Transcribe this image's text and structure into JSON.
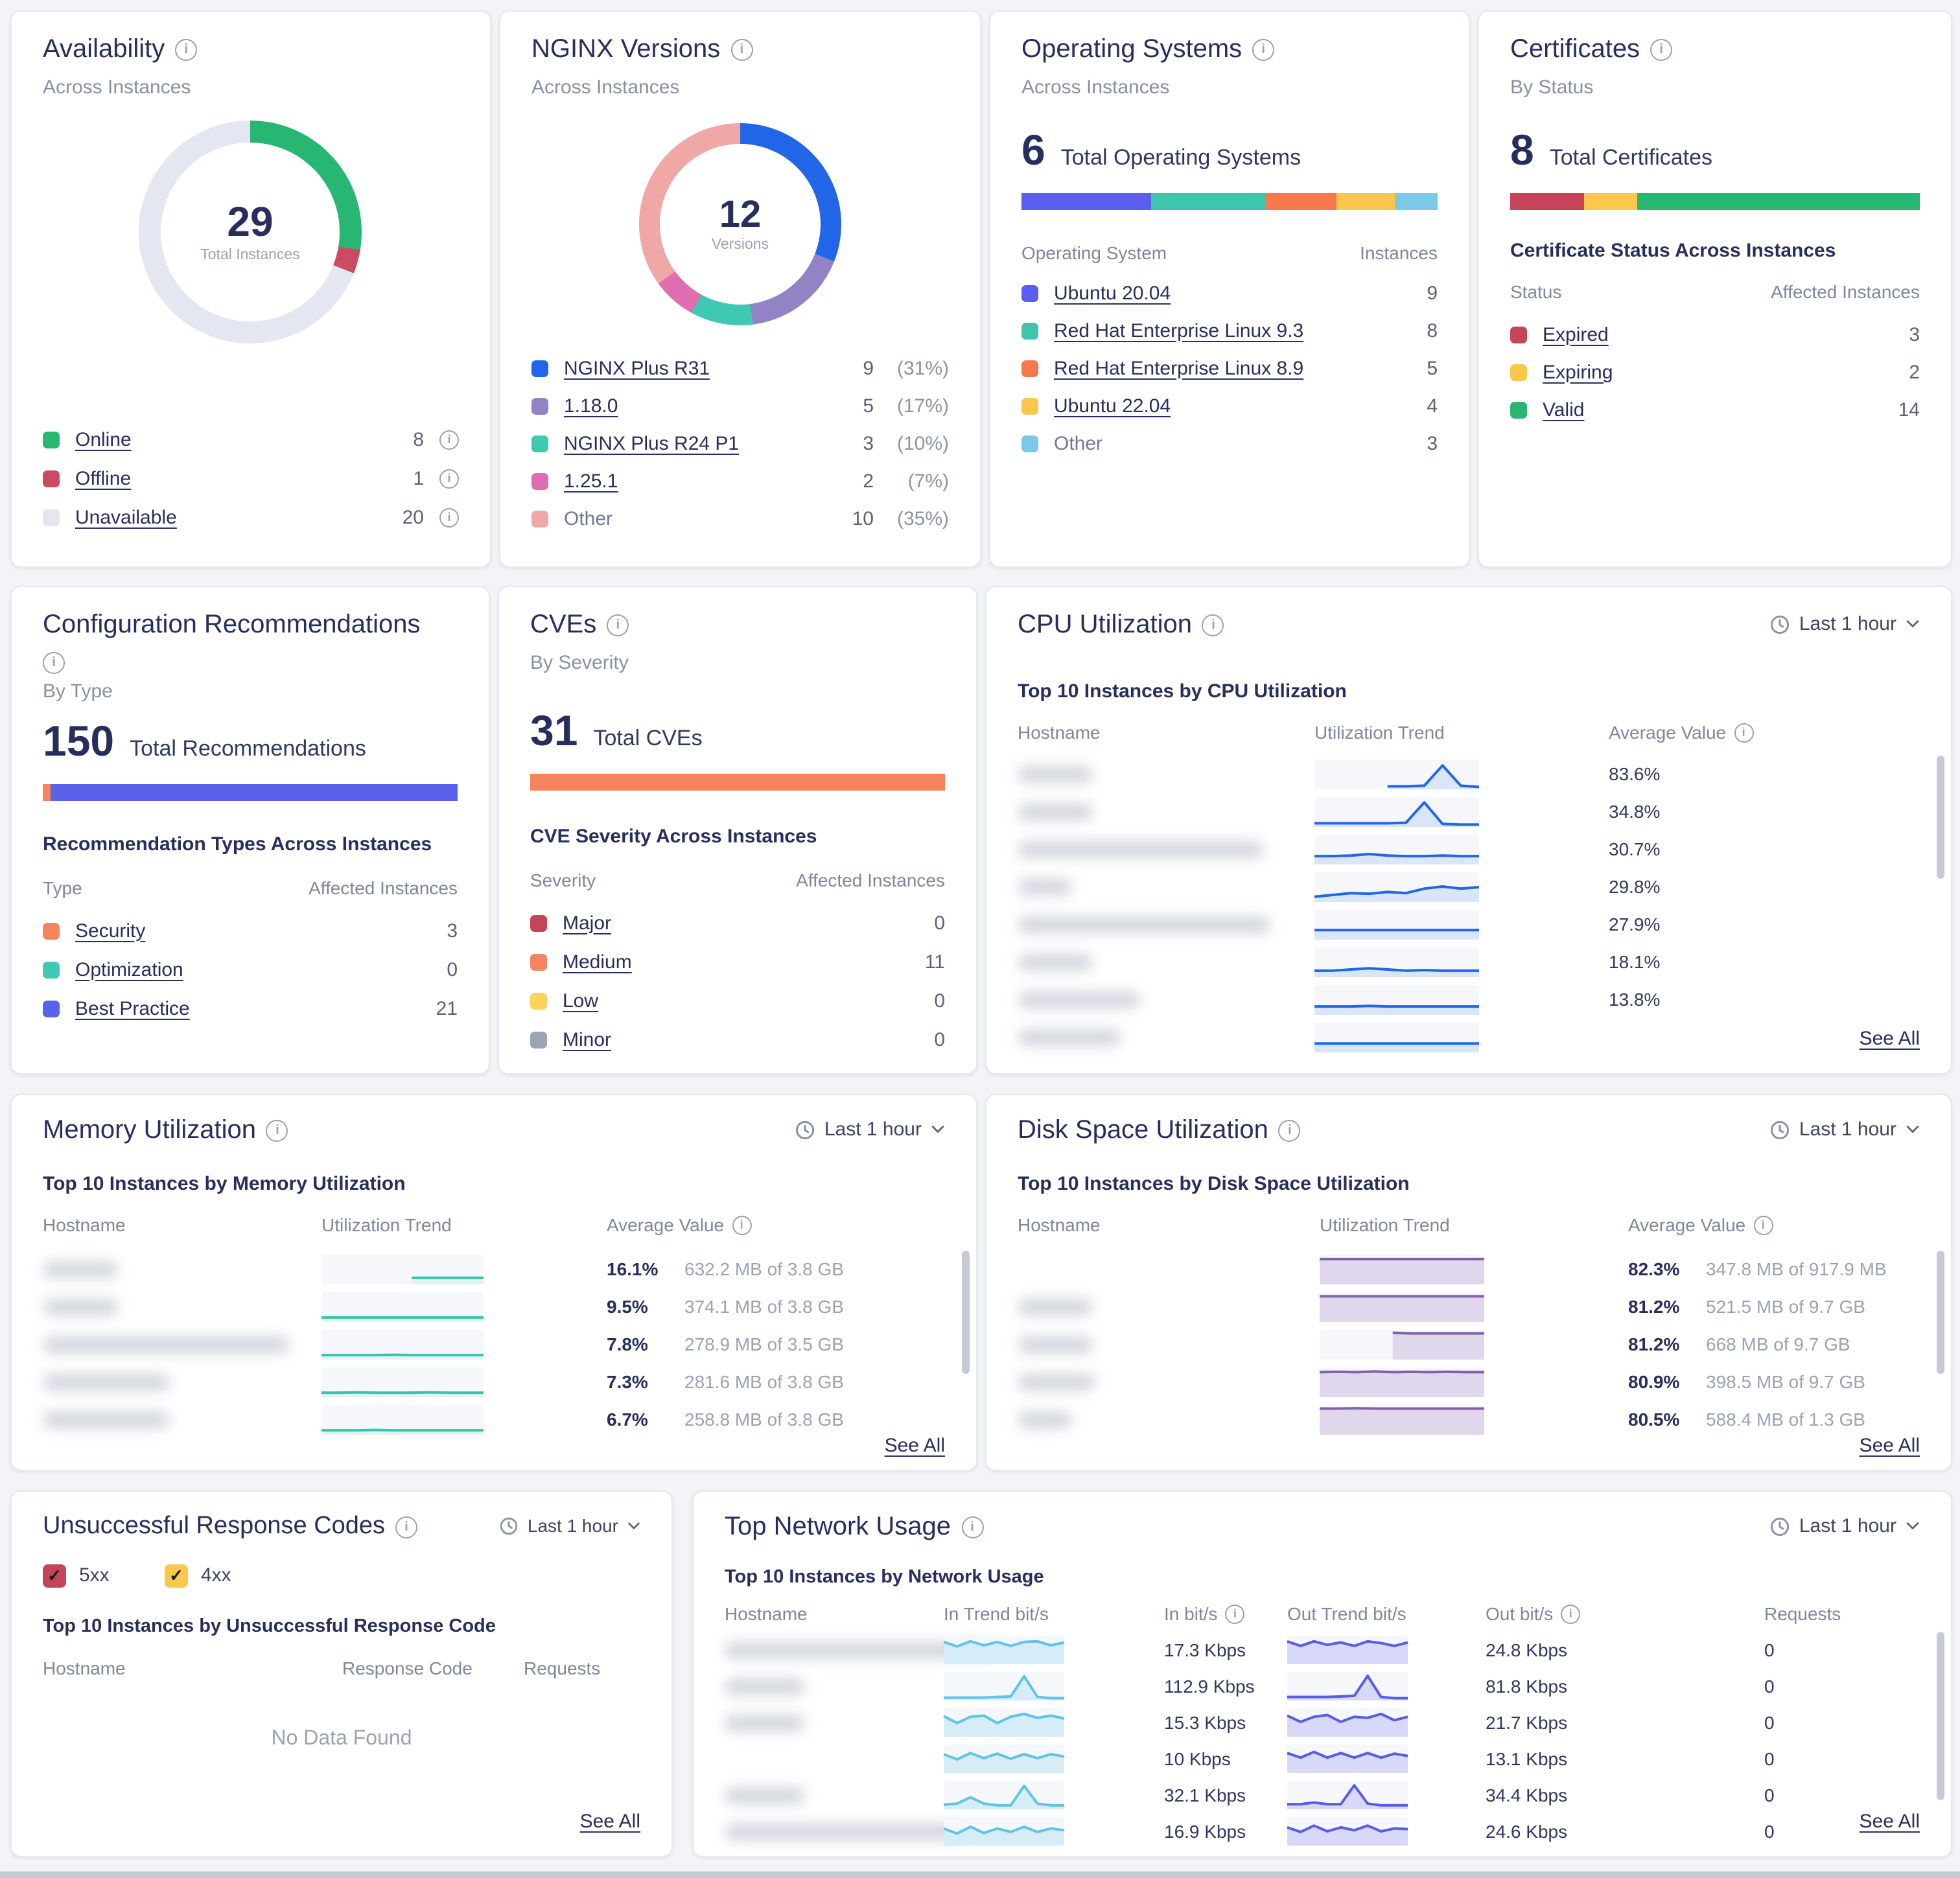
{
  "page": {
    "background": "#f2f4f8"
  },
  "spark_styles": {
    "cpu": {
      "line": "#2166e8",
      "fill": "#d9e6fa"
    },
    "memory": {
      "line": "#35c4ad",
      "fill": "#e2f4f1"
    },
    "disk": {
      "line": "#8260aa",
      "fill": "#e0d7ec"
    },
    "netin": {
      "line": "#5ec5e6",
      "fill": "#d6edf7"
    },
    "netout": {
      "line": "#585ce8",
      "fill": "#d8d9f9"
    }
  },
  "cards": {
    "availability": {
      "title": "Availability",
      "subtitle": "Across Instances",
      "donut": {
        "center_value": "29",
        "center_label": "Total Instances",
        "segments": [
          {
            "color": "#28b673",
            "value": 8
          },
          {
            "color": "#cb4b60",
            "value": 1
          },
          {
            "color": "#e4e7f2",
            "value": 20
          }
        ]
      },
      "items": [
        {
          "label": "Online",
          "value": "8",
          "color": "#28b673"
        },
        {
          "label": "Offline",
          "value": "1",
          "color": "#cb4b60"
        },
        {
          "label": "Unavailable",
          "value": "20",
          "color": "#e4e7f2"
        }
      ]
    },
    "nginx": {
      "title": "NGINX Versions",
      "subtitle": "Across Instances",
      "donut": {
        "center_value": "12",
        "center_label": "Versions",
        "segments": [
          {
            "color": "#2166e8",
            "value": 31
          },
          {
            "color": "#9183c4",
            "value": 17
          },
          {
            "color": "#3fc9b3",
            "value": 10
          },
          {
            "color": "#df6eb0",
            "value": 7
          },
          {
            "color": "#f0a8a6",
            "value": 35
          }
        ]
      },
      "items": [
        {
          "label": "NGINX Plus R31",
          "value": "9",
          "pct": "(31%)",
          "color": "#2166e8"
        },
        {
          "label": "1.18.0",
          "value": "5",
          "pct": "(17%)",
          "color": "#9183c4"
        },
        {
          "label": "NGINX Plus R24 P1",
          "value": "3",
          "pct": "(10%)",
          "color": "#3fc9b3"
        },
        {
          "label": "1.25.1",
          "value": "2",
          "pct": "(7%)",
          "color": "#df6eb0"
        },
        {
          "label": "Other",
          "value": "10",
          "pct": "(35%)",
          "color": "#f0a8a6"
        }
      ]
    },
    "os": {
      "title": "Operating Systems",
      "subtitle": "Across Instances",
      "total": "6",
      "total_label": "Total Operating Systems",
      "col_left": "Operating System",
      "col_right": "Instances",
      "bar": [
        {
          "color": "#5a5df0",
          "pct": 31
        },
        {
          "color": "#3fc4ae",
          "pct": 27.6
        },
        {
          "color": "#f5794d",
          "pct": 17.2
        },
        {
          "color": "#fbc64c",
          "pct": 13.8
        },
        {
          "color": "#7cc8e8",
          "pct": 10.4
        }
      ],
      "items": [
        {
          "label": "Ubuntu 20.04",
          "value": "9",
          "color": "#5a5df0"
        },
        {
          "label": "Red Hat Enterprise Linux 9.3",
          "value": "8",
          "color": "#3fc4ae"
        },
        {
          "label": "Red Hat Enterprise Linux 8.9",
          "value": "5",
          "color": "#f5794d"
        },
        {
          "label": "Ubuntu 22.04",
          "value": "4",
          "color": "#fbc64c"
        },
        {
          "label": "Other",
          "value": "3",
          "color": "#7cc8e8"
        }
      ]
    },
    "certs": {
      "title": "Certificates",
      "subtitle": "By Status",
      "total": "8",
      "total_label": "Total Certificates",
      "section": "Certificate Status Across Instances",
      "col_left": "Status",
      "col_right": "Affected Instances",
      "bar": [
        {
          "color": "#c64459",
          "pct": 18
        },
        {
          "color": "#fbc84c",
          "pct": 13
        },
        {
          "color": "#28b673",
          "pct": 69
        }
      ],
      "items": [
        {
          "label": "Expired",
          "value": "3",
          "color": "#c64459"
        },
        {
          "label": "Expiring",
          "value": "2",
          "color": "#fbc84c"
        },
        {
          "label": "Valid",
          "value": "14",
          "color": "#28b673"
        }
      ]
    },
    "config": {
      "title": "Configuration Recommendations",
      "subtitle": "By Type",
      "total": "150",
      "total_label": "Total Recommendations",
      "section": "Recommendation Types Across Instances",
      "col_left": "Type",
      "col_right": "Affected Instances",
      "bar": [
        {
          "color": "#f5845c",
          "pct": 2
        },
        {
          "color": "#5b62ea",
          "pct": 98
        }
      ],
      "items": [
        {
          "label": "Security",
          "value": "3",
          "color": "#f5845c"
        },
        {
          "label": "Optimization",
          "value": "0",
          "color": "#3fc9b3"
        },
        {
          "label": "Best Practice",
          "value": "21",
          "color": "#5b62ea"
        }
      ]
    },
    "cves": {
      "title": "CVEs",
      "subtitle": "By Severity",
      "total": "31",
      "total_label": "Total CVEs",
      "section": "CVE Severity Across Instances",
      "col_left": "Severity",
      "col_right": "Affected Instances",
      "bar": [
        {
          "color": "#f5845c",
          "pct": 100
        }
      ],
      "items": [
        {
          "label": "Major",
          "value": "0",
          "color": "#c64459"
        },
        {
          "label": "Medium",
          "value": "11",
          "color": "#f5845c"
        },
        {
          "label": "Low",
          "value": "0",
          "color": "#fbd35e"
        },
        {
          "label": "Minor",
          "value": "0",
          "color": "#9aa4b5"
        }
      ]
    },
    "cpu": {
      "title": "CPU Utilization",
      "time_range": "Last 1 hour",
      "section": "Top 10 Instances by CPU Utilization",
      "col_host": "Hostname",
      "col_trend": "Utilization Trend",
      "col_avg": "Average Value",
      "see_all": "See All",
      "rows": [
        {
          "host_w": 58,
          "avg": "83.6%",
          "trend": [
            null,
            null,
            null,
            null,
            0.9,
            0.9,
            0.88,
            0.2,
            0.88,
            0.92
          ]
        },
        {
          "host_w": 58,
          "avg": "34.8%",
          "trend": [
            0.88,
            0.88,
            0.88,
            0.88,
            0.88,
            0.86,
            0.18,
            0.9,
            0.92,
            0.92
          ]
        },
        {
          "host_w": 190,
          "avg": "30.7%",
          "trend": [
            0.72,
            0.72,
            0.7,
            0.65,
            0.7,
            0.72,
            0.72,
            0.7,
            0.72,
            0.72
          ]
        },
        {
          "host_w": 42,
          "avg": "29.8%",
          "trend": [
            0.82,
            0.76,
            0.7,
            0.72,
            0.66,
            0.7,
            0.55,
            0.48,
            0.55,
            0.5
          ]
        },
        {
          "host_w": 195,
          "avg": "27.9%",
          "trend": [
            0.68,
            0.68,
            0.68,
            0.68,
            0.68,
            0.68,
            0.68,
            0.68,
            0.68,
            0.68
          ]
        },
        {
          "host_w": 58,
          "avg": "18.1%",
          "trend": [
            0.78,
            0.78,
            0.74,
            0.7,
            0.74,
            0.78,
            0.76,
            0.78,
            0.78,
            0.78
          ]
        },
        {
          "host_w": 95,
          "avg": "13.8%",
          "trend": [
            0.72,
            0.72,
            0.72,
            0.7,
            0.72,
            0.72,
            0.72,
            0.72,
            0.72,
            0.72
          ]
        },
        {
          "host_w": 80,
          "avg": "",
          "trend": [
            0.7,
            0.7,
            0.7,
            0.7,
            0.7,
            0.7,
            0.7,
            0.7,
            0.7,
            0.7
          ]
        }
      ]
    },
    "memory": {
      "title": "Memory Utilization",
      "time_range": "Last 1 hour",
      "section": "Top 10 Instances by Memory Utilization",
      "col_host": "Hostname",
      "col_trend": "Utilization Trend",
      "col_avg": "Average Value",
      "see_all": "See All",
      "rows": [
        {
          "host_w": 58,
          "pct": "16.1%",
          "detail": "632.2 MB of 3.8 GB",
          "trend": [
            null,
            null,
            null,
            null,
            null,
            0.78,
            0.78,
            0.78,
            0.78,
            0.78
          ]
        },
        {
          "host_w": 58,
          "pct": "9.5%",
          "detail": "374.1 MB of 3.8 GB",
          "trend": [
            0.85,
            0.85,
            0.85,
            0.85,
            0.85,
            0.85,
            0.85,
            0.85,
            0.85,
            0.85
          ]
        },
        {
          "host_w": 190,
          "pct": "7.8%",
          "detail": "278.9 MB of 3.5 GB",
          "trend": [
            0.85,
            0.85,
            0.85,
            0.85,
            0.84,
            0.85,
            0.85,
            0.85,
            0.85,
            0.85
          ]
        },
        {
          "host_w": 98,
          "pct": "7.3%",
          "detail": "281.6 MB of 3.8 GB",
          "trend": [
            0.85,
            0.85,
            0.84,
            0.85,
            0.85,
            0.85,
            0.84,
            0.85,
            0.85,
            0.85
          ]
        },
        {
          "host_w": 98,
          "pct": "6.7%",
          "detail": "258.8 MB of 3.8 GB",
          "trend": [
            0.85,
            0.85,
            0.85,
            0.84,
            0.85,
            0.85,
            0.85,
            0.85,
            0.85,
            0.85
          ]
        }
      ]
    },
    "disk": {
      "title": "Disk Space Utilization",
      "time_range": "Last 1 hour",
      "section": "Top 10 Instances by Disk Space Utilization",
      "col_host": "Hostname",
      "col_trend": "Utilization Trend",
      "col_avg": "Average Value",
      "see_all": "See All",
      "rows": [
        {
          "host_w": 0,
          "pct": "82.3%",
          "detail": "347.8 MB of 917.9 MB",
          "trend": [
            0.15,
            0.15,
            0.15,
            0.15,
            0.15,
            0.15,
            0.15,
            0.15,
            0.15,
            0.15
          ]
        },
        {
          "host_w": 58,
          "pct": "81.2%",
          "detail": "521.5 MB of 9.7 GB",
          "trend": [
            0.14,
            0.14,
            0.14,
            0.14,
            0.14,
            0.14,
            0.14,
            0.14,
            0.14,
            0.14
          ]
        },
        {
          "host_w": 58,
          "pct": "81.2%",
          "detail": "668 MB of 9.7 GB",
          "trend": [
            null,
            null,
            null,
            null,
            0.1,
            0.12,
            0.12,
            0.12,
            0.12,
            0.12
          ]
        },
        {
          "host_w": 60,
          "pct": "80.9%",
          "detail": "398.5 MB of 9.7 GB",
          "trend": [
            0.16,
            0.15,
            0.16,
            0.14,
            0.16,
            0.15,
            0.16,
            0.15,
            0.16,
            0.16
          ]
        },
        {
          "host_w": 42,
          "pct": "80.5%",
          "detail": "588.4 MB of 1.3 GB",
          "trend": [
            0.12,
            0.12,
            0.11,
            0.12,
            0.12,
            0.12,
            0.12,
            0.12,
            0.12,
            0.12
          ]
        }
      ]
    },
    "urc": {
      "title": "Unsuccessful Response Codes",
      "time_range": "Last 1 hour",
      "filters": [
        {
          "label": "5xx",
          "color": "#c64459",
          "checked": true
        },
        {
          "label": "4xx",
          "color": "#fbc84c",
          "checked": true
        }
      ],
      "section": "Top 10 Instances by Unsuccessful Response Code",
      "col_host": "Hostname",
      "col_code": "Response Code",
      "col_req": "Requests",
      "empty": "No Data Found",
      "see_all": "See All"
    },
    "network": {
      "title": "Top Network Usage",
      "time_range": "Last 1 hour",
      "section": "Top 10 Instances by Network Usage",
      "col_host": "Hostname",
      "col_in_trend": "In Trend bit/s",
      "col_in": "In bit/s",
      "col_out_trend": "Out Trend bit/s",
      "col_out": "Out bit/s",
      "col_req": "Requests",
      "see_all": "See All",
      "rows": [
        {
          "host_w": 210,
          "in": "17.3 Kbps",
          "out": "24.8 Kbps",
          "req": "0",
          "in_trend": [
            0.22,
            0.38,
            0.2,
            0.34,
            0.22,
            0.36,
            0.22,
            0.2,
            0.34,
            0.24
          ],
          "out_trend": [
            0.2,
            0.36,
            0.2,
            0.32,
            0.24,
            0.36,
            0.2,
            0.26,
            0.36,
            0.24
          ]
        },
        {
          "host_w": 62,
          "in": "112.9 Kbps",
          "out": "81.8 Kbps",
          "req": "0",
          "in_trend": [
            0.9,
            0.9,
            0.9,
            0.9,
            0.88,
            0.86,
            0.15,
            0.88,
            0.92,
            0.92
          ],
          "out_trend": [
            0.88,
            0.88,
            0.88,
            0.88,
            0.86,
            0.84,
            0.14,
            0.88,
            0.92,
            0.92
          ]
        },
        {
          "host_w": 62,
          "in": "15.3 Kbps",
          "out": "21.7 Kbps",
          "req": "0",
          "in_trend": [
            0.28,
            0.52,
            0.3,
            0.26,
            0.52,
            0.3,
            0.2,
            0.34,
            0.26,
            0.36
          ],
          "out_trend": [
            0.26,
            0.48,
            0.3,
            0.24,
            0.48,
            0.3,
            0.34,
            0.2,
            0.42,
            0.3
          ]
        },
        {
          "host_w": 0,
          "in": "10 Kbps",
          "out": "13.1 Kbps",
          "req": "0",
          "in_trend": [
            0.34,
            0.52,
            0.3,
            0.48,
            0.32,
            0.5,
            0.34,
            0.48,
            0.34,
            0.42
          ],
          "out_trend": [
            0.3,
            0.46,
            0.26,
            0.46,
            0.3,
            0.46,
            0.3,
            0.46,
            0.32,
            0.4
          ]
        },
        {
          "host_w": 62,
          "in": "32.1 Kbps",
          "out": "34.4 Kbps",
          "req": "0",
          "in_trend": [
            0.84,
            0.8,
            0.58,
            0.8,
            0.86,
            0.86,
            0.18,
            0.8,
            0.86,
            0.86
          ],
          "out_trend": [
            0.82,
            0.82,
            0.76,
            0.82,
            0.82,
            0.16,
            0.8,
            0.86,
            0.86,
            0.86
          ]
        },
        {
          "host_w": 185,
          "in": "16.9 Kbps",
          "out": "24.6 Kbps",
          "req": "0",
          "in_trend": [
            0.4,
            0.58,
            0.34,
            0.56,
            0.4,
            0.52,
            0.34,
            0.52,
            0.4,
            0.46
          ],
          "out_trend": [
            0.36,
            0.52,
            0.3,
            0.5,
            0.36,
            0.46,
            0.3,
            0.5,
            0.4,
            0.42
          ]
        }
      ]
    }
  }
}
